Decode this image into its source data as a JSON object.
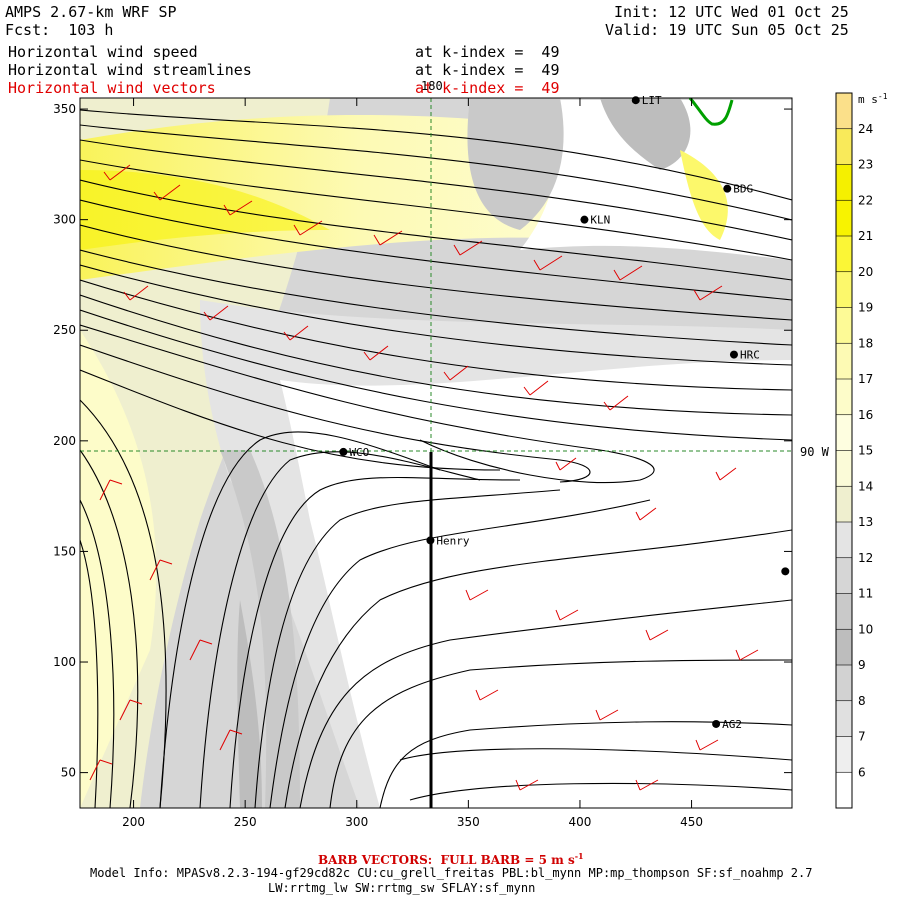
{
  "header": {
    "model": "AMPS 2.67-km WRF SP",
    "forecast": "Fcst:  103 h",
    "init": "Init: 12 UTC Wed 01 Oct 25",
    "valid": "Valid: 19 UTC Sun 05 Oct 25",
    "fields": [
      {
        "name": "Horizontal wind speed",
        "level": "at k-index =  49",
        "color": "#000000"
      },
      {
        "name": "Horizontal wind streamlines",
        "level": "at k-index =  49",
        "color": "#000000"
      },
      {
        "name": "Horizontal wind vectors",
        "level": "at k-index =  49",
        "color": "#e00000"
      }
    ]
  },
  "map": {
    "x_ticks": [
      "200",
      "250",
      "300",
      "350",
      "400",
      "450"
    ],
    "x_tick_values": [
      200,
      250,
      300,
      350,
      400,
      450
    ],
    "y_ticks": [
      "50",
      "100",
      "150",
      "200",
      "250",
      "300",
      "350"
    ],
    "y_tick_values": [
      50,
      100,
      150,
      200,
      250,
      300,
      350
    ],
    "x_range": [
      176,
      495
    ],
    "y_range": [
      34,
      355
    ],
    "meridian_label": "180",
    "parallel_label": "90 W",
    "stations": [
      {
        "label": "KLN",
        "x": 402,
        "y": 300
      },
      {
        "label": "BDG",
        "x": 466,
        "y": 314
      },
      {
        "label": "HRC",
        "x": 469,
        "y": 239
      },
      {
        "label": "WCO",
        "x": 294,
        "y": 195
      },
      {
        "label": "Henry",
        "x": 333,
        "y": 155
      },
      {
        "label": "AG2",
        "x": 461,
        "y": 72
      },
      {
        "label": "LIT",
        "x": 425,
        "y": 354
      },
      {
        "label": "",
        "x": 492,
        "y": 141
      }
    ]
  },
  "colorbar": {
    "unit": "m s",
    "unit_exp": "-1",
    "labels": [
      "24",
      "23",
      "22",
      "21",
      "20",
      "19",
      "18",
      "17",
      "16",
      "15",
      "14",
      "13",
      "12",
      "11",
      "10",
      "9",
      "8",
      "7",
      "6"
    ],
    "colors": [
      "#fbe08a",
      "#f9ea5a",
      "#f5f000",
      "#f8f300",
      "#fbf636",
      "#fcf86b",
      "#fdfa96",
      "#fdfab4",
      "#fdfcc9",
      "#fefee0",
      "#fbfbd8",
      "#efefcf",
      "#e4e4e4",
      "#d6d6d6",
      "#c9c9c9",
      "#bdbdbd",
      "#d2d2d2",
      "#e0e0e0",
      "#eeeeee",
      "#ffffff"
    ]
  },
  "footer": {
    "barb": "BARB VECTORS:  FULL BARB = 5 m s",
    "barb_exp": "-1",
    "model_info_1": "Model Info: MPASv8.2.3-194-gf29cd82c CU:cu_grell_freitas PBL:bl_mynn MP:mp_thompson SF:sf_noahmp 2.7",
    "model_info_2": "LW:rrtmg_lw SW:rrtmg_sw SFLAY:sf_mynn"
  }
}
